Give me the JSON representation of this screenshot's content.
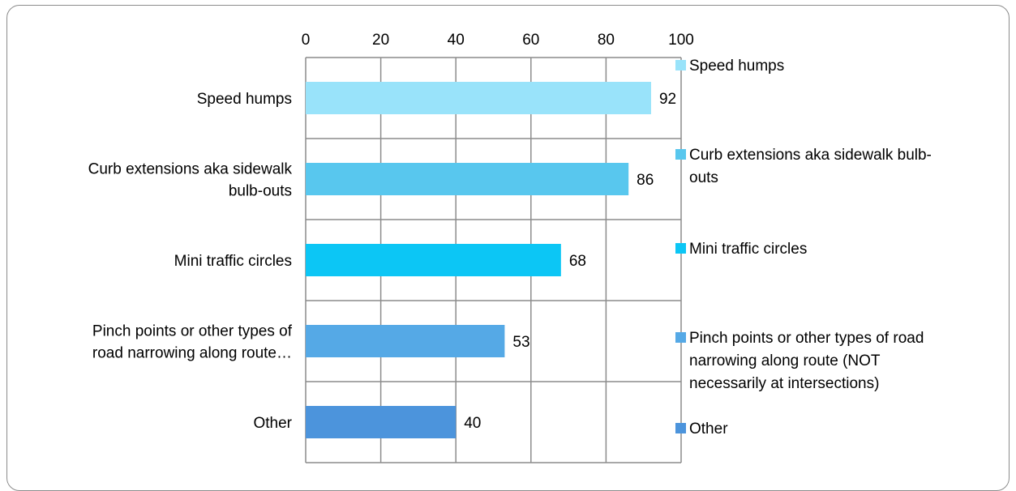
{
  "chart_data": {
    "type": "bar",
    "orientation": "horizontal",
    "categories": [
      "Speed humps",
      "Curb extensions aka sidewalk bulb-outs",
      "Mini traffic circles",
      "Pinch points or other types of road narrowing along route (NOT necessarily at intersections)",
      "Other"
    ],
    "category_labels": [
      [
        "Speed humps"
      ],
      [
        "Curb extensions aka sidewalk",
        "bulb-outs"
      ],
      [
        "Mini traffic circles"
      ],
      [
        "Pinch points or other types of",
        "road narrowing along route…"
      ],
      [
        "Other"
      ]
    ],
    "values": [
      92,
      86,
      68,
      53,
      40
    ],
    "colors": [
      "#99e3fa",
      "#58c7ee",
      "#0cc6f5",
      "#55a9e6",
      "#4c94dc"
    ],
    "xlim": [
      0,
      100
    ],
    "x_ticks": [
      "0",
      "20",
      "40",
      "60",
      "80",
      "100"
    ],
    "x_axis_position": "top",
    "grid": true,
    "legend": {
      "position": "right",
      "items": [
        [
          "Speed humps"
        ],
        [
          "Curb extensions aka sidewalk bulb-",
          "outs"
        ],
        [
          "Mini traffic circles"
        ],
        [
          "Pinch points or other types of road",
          "narrowing along route (NOT",
          "necessarily at intersections)"
        ],
        [
          "Other"
        ]
      ]
    }
  }
}
